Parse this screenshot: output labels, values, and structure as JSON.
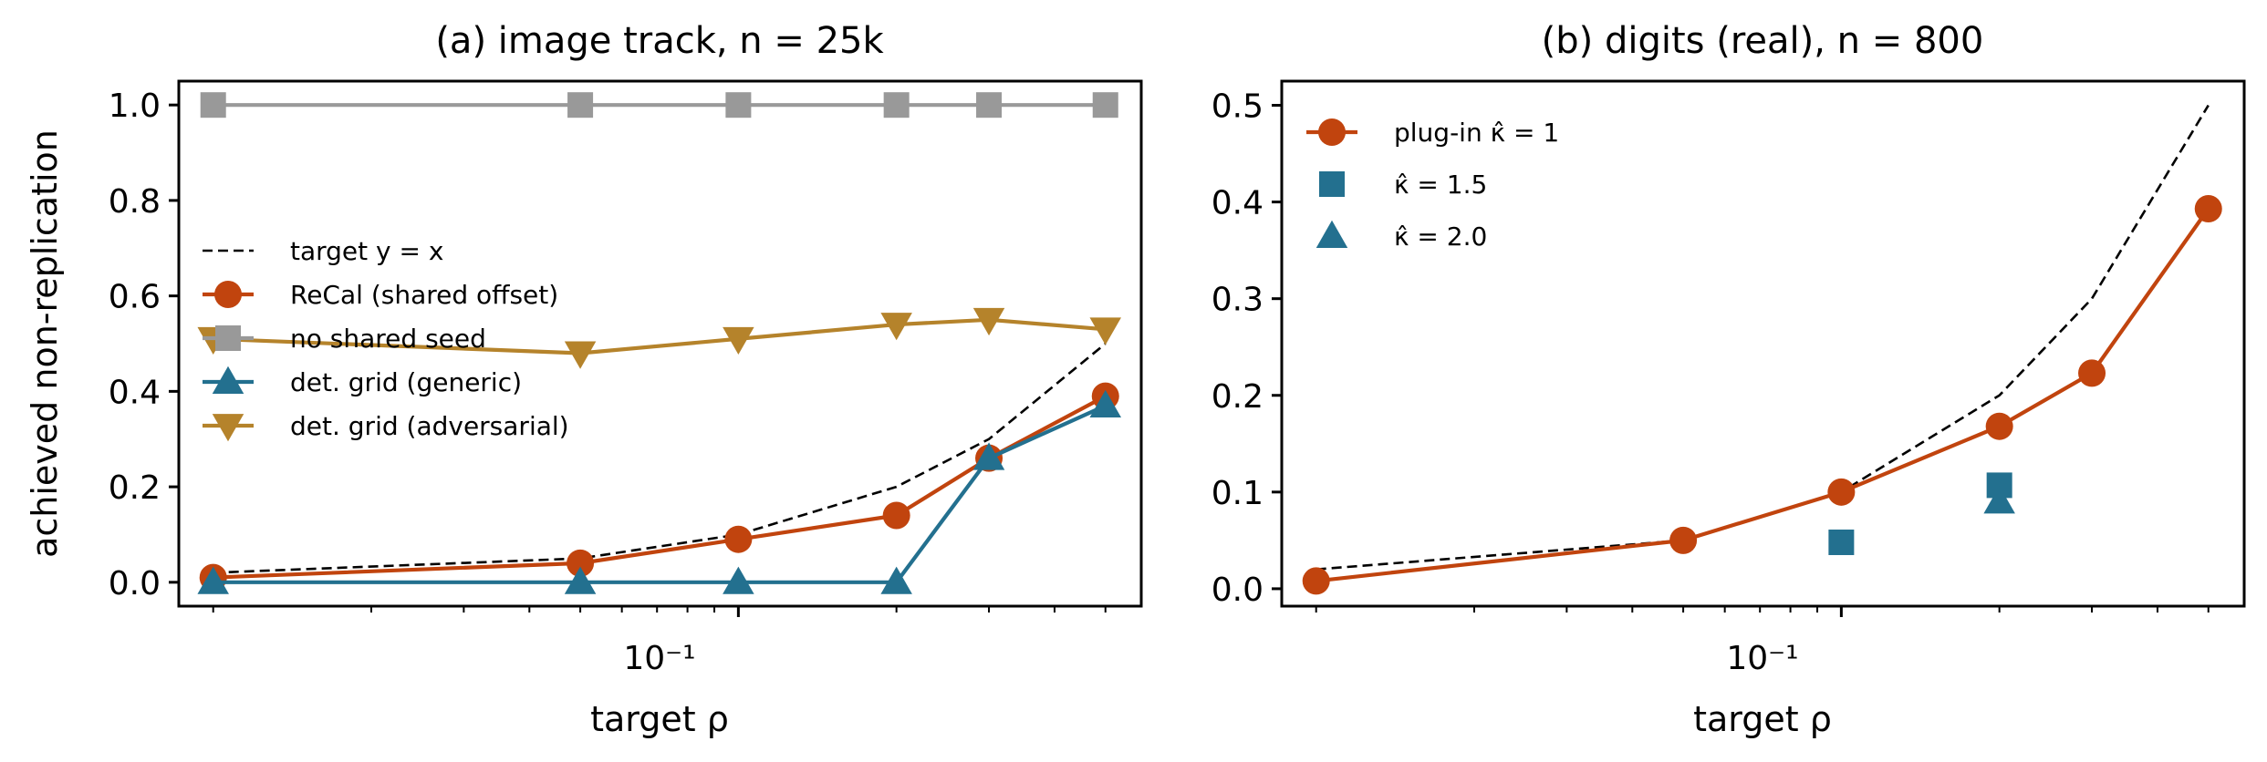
{
  "chart_data": [
    {
      "type": "line",
      "title": "(a) image track, n = 25k",
      "xlabel": "target ρ",
      "ylabel": "achieved non-replication",
      "xscale": "log",
      "xlim": [
        0.0086,
        0.585
      ],
      "ylim": [
        -0.05,
        1.05
      ],
      "yticks": [
        "0.0",
        "0.2",
        "0.4",
        "0.6",
        "0.8",
        "1.0"
      ],
      "xtick_label": "10⁻¹",
      "legend_position": "center-left",
      "x": [
        0.01,
        0.05,
        0.1,
        0.2,
        0.3,
        0.5
      ],
      "series": [
        {
          "name": "target y = x",
          "color": "#000000",
          "style": "dashed",
          "marker": "none",
          "values": [
            0.02,
            0.05,
            0.1,
            0.2,
            0.3,
            0.5
          ]
        },
        {
          "name": "ReCal (shared offset)",
          "color": "#c1440e",
          "style": "solid",
          "marker": "circle",
          "values": [
            0.01,
            0.04,
            0.09,
            0.14,
            0.26,
            0.39
          ]
        },
        {
          "name": "no shared seed",
          "color": "#999999",
          "style": "solid",
          "marker": "square",
          "values": [
            1.0,
            1.0,
            1.0,
            1.0,
            1.0,
            1.0
          ]
        },
        {
          "name": "det. grid (generic)",
          "color": "#23708f",
          "style": "solid",
          "marker": "triangle-up",
          "values": [
            0.0,
            0.0,
            0.0,
            0.0,
            0.26,
            0.37
          ]
        },
        {
          "name": "det. grid (adversarial)",
          "color": "#b5832b",
          "style": "solid",
          "marker": "triangle-down",
          "values": [
            0.51,
            0.48,
            0.51,
            0.54,
            0.55,
            0.53
          ]
        }
      ]
    },
    {
      "type": "line",
      "title": "(b) digits (real), n = 800",
      "xlabel": "target ρ",
      "xscale": "log",
      "xlim": [
        0.0086,
        0.585
      ],
      "ylim": [
        -0.018,
        0.525
      ],
      "yticks": [
        "0.0",
        "0.1",
        "0.2",
        "0.3",
        "0.4",
        "0.5"
      ],
      "xtick_label": "10⁻¹",
      "legend_position": "upper-left",
      "x": [
        0.01,
        0.05,
        0.1,
        0.2,
        0.3,
        0.5
      ],
      "series": [
        {
          "color": "#000000",
          "style": "dashed",
          "marker": "none",
          "values": [
            0.02,
            0.05,
            0.1,
            0.2,
            0.3,
            0.5
          ]
        },
        {
          "name": "plug-in κ̂ = 1",
          "color": "#c1440e",
          "style": "solid",
          "marker": "circle",
          "values": [
            0.008,
            0.05,
            0.1,
            0.168,
            0.223,
            0.393
          ]
        },
        {
          "name": "κ̂ = 1.5",
          "color": "#23708f",
          "style": "none",
          "marker": "square",
          "points": [
            [
              0.1,
              0.048
            ],
            [
              0.2,
              0.107
            ]
          ]
        },
        {
          "name": "κ̂ = 2.0",
          "color": "#23708f",
          "style": "none",
          "marker": "triangle-up",
          "points": [
            [
              0.2,
              0.09
            ]
          ]
        }
      ]
    }
  ]
}
